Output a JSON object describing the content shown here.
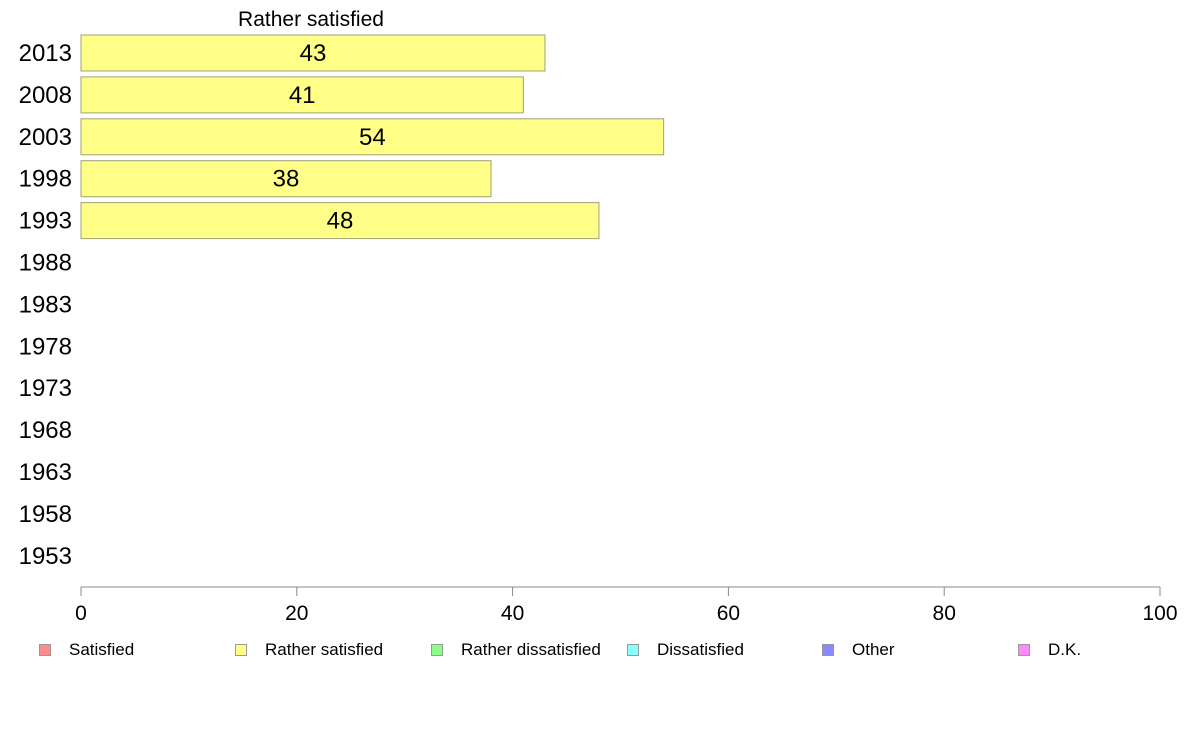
{
  "chart_data": {
    "type": "bar",
    "orientation": "horizontal",
    "title": "Rather satisfied",
    "categories": [
      "2013",
      "2008",
      "2003",
      "1998",
      "1993",
      "1988",
      "1983",
      "1978",
      "1973",
      "1968",
      "1963",
      "1958",
      "1953"
    ],
    "series": [
      {
        "name": "Rather satisfied",
        "color": "#ffff88",
        "values": [
          43,
          41,
          54,
          38,
          48,
          null,
          null,
          null,
          null,
          null,
          null,
          null,
          null
        ]
      }
    ],
    "xlim": [
      0,
      100
    ],
    "xticks": [
      "0",
      "20",
      "40",
      "60",
      "80",
      "100"
    ],
    "grid": false,
    "legend": {
      "placement": "bottom",
      "items": [
        {
          "label": "Satisfied",
          "color": "#ff8c8c"
        },
        {
          "label": "Rather satisfied",
          "color": "#ffff88"
        },
        {
          "label": "Rather dissatisfied",
          "color": "#88ff88"
        },
        {
          "label": "Dissatisfied",
          "color": "#88ffff"
        },
        {
          "label": "Other",
          "color": "#8888ff"
        },
        {
          "label": "D.K.",
          "color": "#ff88ff"
        }
      ]
    }
  }
}
